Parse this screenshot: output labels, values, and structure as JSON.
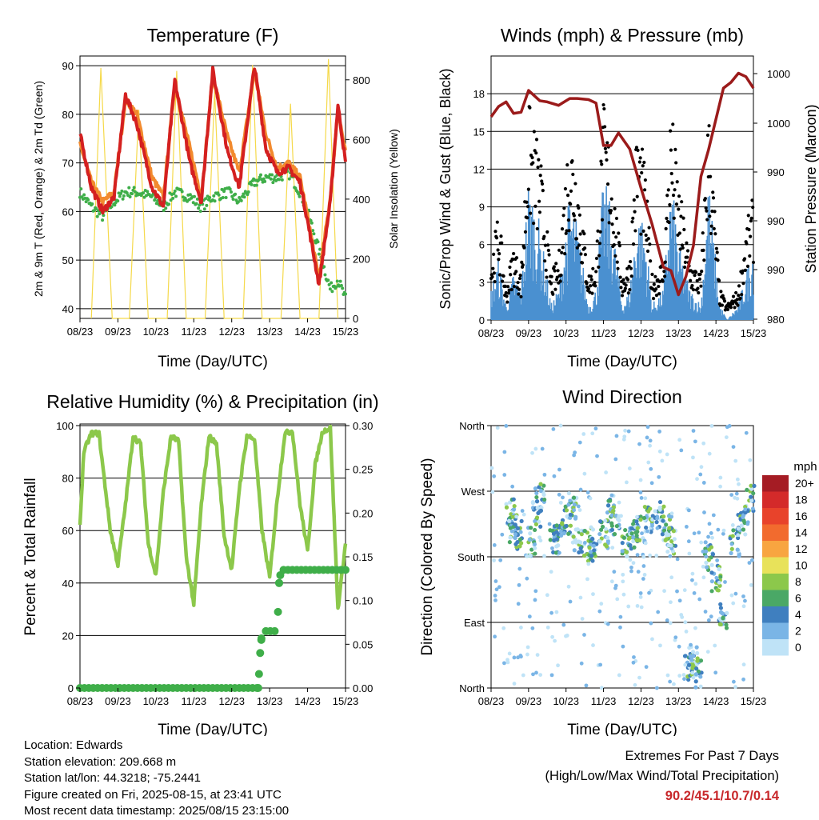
{
  "x_ticks": [
    "08/23",
    "09/23",
    "10/23",
    "11/23",
    "12/23",
    "13/23",
    "14/23",
    "15/23"
  ],
  "x_label": "Time (Day/UTC)",
  "panels": {
    "temperature": {
      "title": "Temperature (F)",
      "ylabel_left": "2m & 9m T (Red, Orange) & 2m Td (Green)",
      "ylabel_right": "Solar Insolation (Yellow)",
      "left_ticks": [
        "40",
        "50",
        "60",
        "70",
        "80",
        "90"
      ],
      "right_ticks": [
        "0",
        "200",
        "400",
        "600",
        "800"
      ]
    },
    "winds": {
      "title": "Winds (mph) & Pressure (mb)",
      "ylabel_left": "Sonic/Prop Wind & Gust (Blue, Black)",
      "ylabel_right": "Station Pressure (Maroon)",
      "left_ticks": [
        "0",
        "3",
        "6",
        "9",
        "12",
        "15",
        "18"
      ],
      "right_ticks": [
        "980",
        "990",
        "990",
        "990",
        "1000",
        "1000"
      ]
    },
    "humidity": {
      "title": "Relative Humidity (%) & Precipitation (in)",
      "ylabel_left": "Percent & Total Rainfall",
      "left_ticks": [
        "0",
        "20",
        "40",
        "60",
        "80",
        "100"
      ],
      "right_ticks": [
        "0.00",
        "0.05",
        "0.10",
        "0.15",
        "0.20",
        "0.25",
        "0.30"
      ]
    },
    "direction": {
      "title": "Wind Direction",
      "ylabel_left": "Direction (Colored By Speed)",
      "left_ticks": [
        "North",
        "East",
        "South",
        "West",
        "North"
      ],
      "legend_title": "mph",
      "legend_labels": [
        "20+",
        "18",
        "16",
        "14",
        "12",
        "10",
        "8",
        "6",
        "4",
        "2",
        "0"
      ],
      "legend_colors": [
        "#a51c24",
        "#d42a2a",
        "#e8432b",
        "#f26b2e",
        "#f8a540",
        "#e8e25a",
        "#8cc84b",
        "#4aa866",
        "#3f7fbf",
        "#7ab5e6",
        "#bfe3f7"
      ]
    }
  },
  "colors": {
    "temp_2m": "#d42020",
    "temp_9m": "#f28a2e",
    "dewpoint": "#3fae49",
    "solar": "#f5d94a",
    "wind": "#4a90d0",
    "gust": "#000000",
    "pressure": "#9b1b1b",
    "rh": "#8cc84b",
    "precip": "#3fae49"
  },
  "chart_data": [
    {
      "type": "line",
      "title": "Temperature (F)",
      "xlabel": "Time (Day/UTC)",
      "ylabel": "2m & 9m T (Red, Orange) & 2m Td (Green)",
      "ylabel_right": "Solar Insolation (Yellow)",
      "x_range": [
        8,
        15
      ],
      "ylim": [
        38,
        92
      ],
      "ylim_right": [
        0,
        880
      ],
      "grid": true,
      "series": [
        {
          "x": [
            8.0,
            8.3,
            8.6,
            8.9,
            9.2,
            9.5,
            9.9,
            10.2,
            10.5,
            10.9,
            11.2,
            11.5,
            11.9,
            12.2,
            12.6,
            12.9,
            13.2,
            13.5,
            13.8,
            14.0,
            14.3,
            14.6,
            14.8,
            15.0
          ],
          "values": [
            76,
            65,
            60,
            63,
            84,
            78,
            65,
            61,
            87,
            70,
            62,
            89,
            72,
            65,
            90,
            73,
            68,
            69,
            66,
            58,
            45,
            62,
            82,
            70
          ]
        },
        {
          "x": [
            8.0,
            8.3,
            8.6,
            8.9,
            9.2,
            9.5,
            9.9,
            10.2,
            10.5,
            10.9,
            11.2,
            11.5,
            11.9,
            12.2,
            12.6,
            12.9,
            13.2,
            13.5,
            13.8,
            14.0,
            14.3,
            14.6,
            14.8,
            15.0
          ],
          "values": [
            74,
            66,
            62,
            64,
            83,
            80,
            67,
            63,
            86,
            73,
            63,
            88,
            75,
            68,
            89,
            76,
            69,
            70,
            67,
            59,
            46,
            63,
            81,
            72
          ]
        },
        {
          "x": [
            8.0,
            8.3,
            8.6,
            8.9,
            9.2,
            9.5,
            9.9,
            10.2,
            10.5,
            10.9,
            11.2,
            11.5,
            11.9,
            12.2,
            12.6,
            12.9,
            13.2,
            13.5,
            13.8,
            14.0,
            14.3,
            14.6,
            14.8,
            15.0
          ],
          "values": [
            64,
            61,
            59,
            62,
            64,
            64,
            63,
            61,
            64,
            63,
            61,
            63,
            64,
            62,
            66,
            67,
            67,
            68,
            64,
            60,
            52,
            44,
            46,
            42
          ]
        },
        {
          "x": [
            8.3,
            8.55,
            8.85,
            9.3,
            9.55,
            9.8,
            10.3,
            10.55,
            10.8,
            11.3,
            11.55,
            11.8,
            12.3,
            12.55,
            12.8,
            13.3,
            13.55,
            13.8,
            14.3,
            14.55,
            14.8
          ],
          "values": [
            0,
            840,
            0,
            0,
            700,
            0,
            0,
            830,
            0,
            0,
            760,
            0,
            0,
            850,
            0,
            0,
            720,
            0,
            0,
            870,
            0
          ]
        }
      ]
    },
    {
      "type": "line",
      "title": "Winds (mph) & Pressure (mb)",
      "xlabel": "Time (Day/UTC)",
      "ylabel": "Sonic/Prop Wind & Gust (Blue, Black)",
      "ylabel_right": "Station Pressure (Maroon)",
      "x_range": [
        8,
        15
      ],
      "ylim": [
        0,
        21
      ],
      "grid": true,
      "series": [
        {
          "x": [
            8.0,
            8.2,
            8.4,
            8.6,
            8.8,
            9.0,
            9.3,
            9.6,
            9.8,
            10.1,
            10.3,
            10.6,
            10.8,
            11.0,
            11.2,
            11.5,
            11.7,
            11.9,
            12.1,
            12.3,
            12.6,
            12.8,
            13.0,
            13.3,
            13.6,
            13.8,
            14.1,
            14.3,
            14.6,
            14.8,
            15.0
          ],
          "values": [
            2,
            4,
            1,
            3,
            2,
            9,
            6,
            1,
            2,
            8,
            6,
            1,
            2,
            9,
            7,
            1,
            2,
            7,
            6,
            1,
            2,
            9,
            5,
            2,
            1,
            9,
            1,
            0,
            1,
            3,
            5
          ]
        },
        {
          "x": [
            8.0,
            8.2,
            8.4,
            8.6,
            8.8,
            9.0,
            9.3,
            9.6,
            9.8,
            10.1,
            10.3,
            10.6,
            10.8,
            11.0,
            11.2,
            11.5,
            11.7,
            11.9,
            12.1,
            12.3,
            12.6,
            12.8,
            13.0,
            13.3,
            13.6,
            13.8,
            14.1,
            14.3,
            14.6,
            14.8,
            15.0
          ],
          "values": [
            4,
            7,
            2,
            5,
            3,
            14,
            11,
            3,
            4,
            13,
            10,
            3,
            4,
            14,
            11,
            3,
            4,
            13,
            10,
            3,
            4,
            14,
            9,
            4,
            3,
            14,
            2,
            1,
            2,
            6,
            8
          ]
        },
        {
          "x": [
            8.0,
            8.2,
            8.4,
            8.6,
            8.8,
            9.0,
            9.3,
            9.5,
            9.8,
            10.1,
            10.3,
            10.6,
            10.8,
            11.0,
            11.2,
            11.4,
            11.7,
            12.0,
            12.3,
            12.6,
            12.8,
            13.0,
            13.2,
            13.4,
            13.6,
            13.8,
            14.0,
            14.2,
            14.4,
            14.6,
            14.8,
            15.0
          ],
          "values": [
            997.7,
            998.6,
            999.0,
            998.0,
            998.1,
            1000.0,
            999.1,
            999.0,
            998.7,
            999.3,
            999.3,
            999.2,
            998.9,
            995.2,
            995.2,
            996.3,
            994.9,
            991.5,
            988.3,
            984.6,
            984.3,
            982.2,
            983.8,
            986.5,
            992.5,
            994.8,
            997.5,
            1000.2,
            1000.7,
            1001.5,
            1001.2,
            1000.2
          ]
        }
      ]
    },
    {
      "type": "line",
      "title": "Relative Humidity (%) & Precipitation (in)",
      "xlabel": "Time (Day/UTC)",
      "ylabel": "Percent & Total Rainfall",
      "x_range": [
        8,
        15
      ],
      "ylim": [
        0,
        100
      ],
      "ylim_right": [
        0.0,
        0.3
      ],
      "grid": true,
      "series": [
        {
          "x": [
            8.0,
            8.1,
            8.3,
            8.5,
            8.8,
            9.0,
            9.2,
            9.4,
            9.6,
            9.8,
            10.0,
            10.2,
            10.4,
            10.6,
            10.8,
            11.0,
            11.2,
            11.4,
            11.6,
            11.8,
            12.0,
            12.2,
            12.4,
            12.6,
            12.8,
            13.0,
            13.2,
            13.4,
            13.6,
            13.8,
            14.0,
            14.2,
            14.4,
            14.6,
            14.8,
            15.0
          ],
          "values": [
            62,
            90,
            97,
            97,
            60,
            47,
            70,
            96,
            93,
            55,
            43,
            75,
            96,
            94,
            50,
            32,
            70,
            96,
            93,
            58,
            45,
            76,
            96,
            95,
            60,
            42,
            72,
            97,
            98,
            70,
            52,
            85,
            98,
            99,
            30,
            55
          ]
        },
        {
          "x": [
            8.0,
            12.7,
            12.75,
            12.8,
            13.2,
            13.25,
            13.3,
            15.0
          ],
          "values": [
            0.0,
            0.0,
            0.04,
            0.065,
            0.065,
            0.12,
            0.135,
            0.135
          ]
        }
      ]
    },
    {
      "type": "scatter",
      "title": "Wind Direction",
      "xlabel": "Time (Day/UTC)",
      "ylabel": "Direction (Colored By Speed)",
      "x_range": [
        8,
        15
      ],
      "y_categories": [
        "North",
        "East",
        "South",
        "West",
        "North"
      ],
      "grid": true,
      "legend_placement": "right",
      "series": [
        {
          "name": "mph",
          "x": [
            8.5,
            8.6,
            8.7,
            9.1,
            9.2,
            9.3,
            9.7,
            9.8,
            10.0,
            10.2,
            10.3,
            10.6,
            10.7,
            11.0,
            11.2,
            11.3,
            11.6,
            11.8,
            12.0,
            12.2,
            12.5,
            12.7,
            12.8,
            13.3,
            13.4,
            13.5,
            13.8,
            14.0,
            14.2,
            14.5,
            14.7,
            14.9
          ],
          "values": [
            240,
            220,
            210,
            200,
            240,
            260,
            200,
            220,
            230,
            250,
            200,
            200,
            190,
            210,
            245,
            230,
            200,
            210,
            220,
            230,
            240,
            220,
            200,
            30,
            40,
            20,
            180,
            150,
            100,
            200,
            230,
            260
          ]
        }
      ]
    }
  ],
  "info": {
    "location": "Location: Edwards",
    "elevation": "Station elevation: 209.668 m",
    "latlon": "Station lat/lon: 44.3218; -75.2441",
    "created": "Figure created on Fri, 2025-08-15, at 23:41 UTC",
    "recent": "Most recent data timestamp: 2025/08/15 23:15:00"
  },
  "extremes": {
    "line1": "Extremes For Past 7 Days",
    "line2": "(High/Low/Max Wind/Total Precipitation)",
    "values": "90.2/45.1/10.7/0.14"
  }
}
